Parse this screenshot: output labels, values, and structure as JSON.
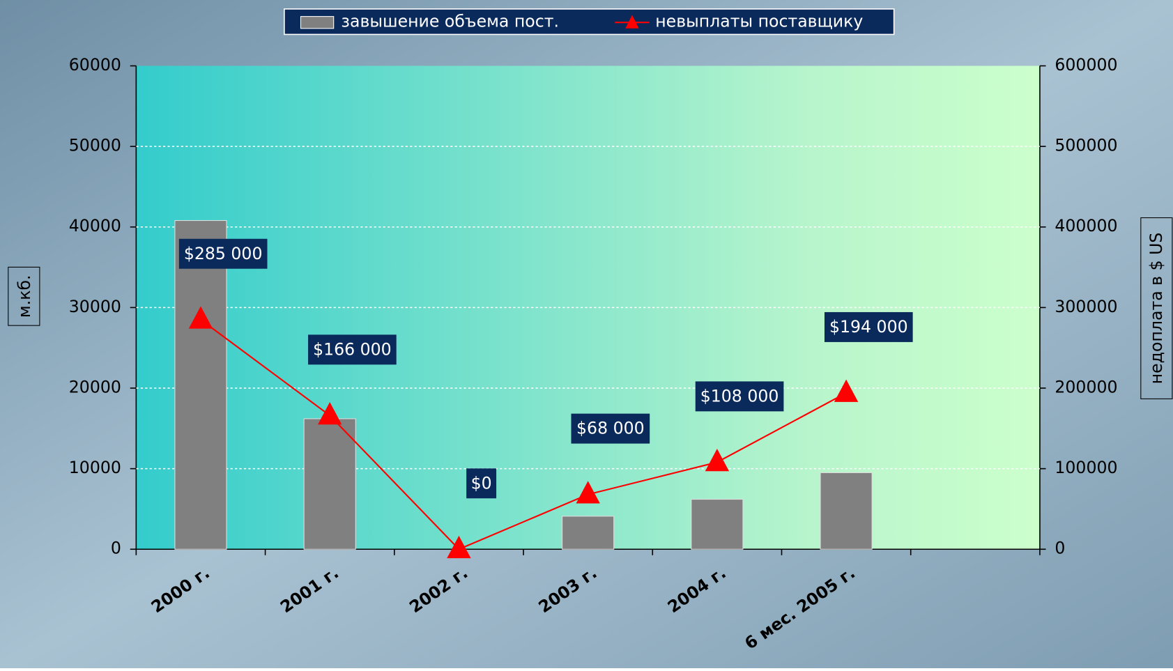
{
  "chart_data": {
    "type": "bar",
    "categories": [
      "2000 г.",
      "2001 г.",
      "2002 г.",
      "2003 г.",
      "2004 г.",
      "6 мес. 2005 г.",
      null
    ],
    "series": [
      {
        "name": "завышение объема пост.",
        "color": "#808080",
        "values": [
          40800,
          16200,
          0,
          4100,
          6200,
          9500,
          null
        ]
      },
      {
        "name": "невыплаты поставщику",
        "color": "#ff0000",
        "axis": "y2",
        "values": [
          285000,
          166000,
          0,
          68000,
          108000,
          194000,
          null
        ],
        "value_labels": [
          "$285 000",
          "$166 000",
          "$0",
          "$68 000",
          "$108 000",
          "$194 000",
          null
        ]
      }
    ],
    "ylabel": "м.кб.",
    "y2label": "недоплата в $ US",
    "ylim": [
      0,
      60000
    ],
    "yticks": [
      0,
      10000,
      20000,
      30000,
      40000,
      50000,
      60000
    ],
    "y2lim": [
      0,
      600000
    ],
    "y2ticks": [
      0,
      100000,
      200000,
      300000,
      400000,
      500000,
      600000
    ],
    "grid": true,
    "legend": "top"
  }
}
